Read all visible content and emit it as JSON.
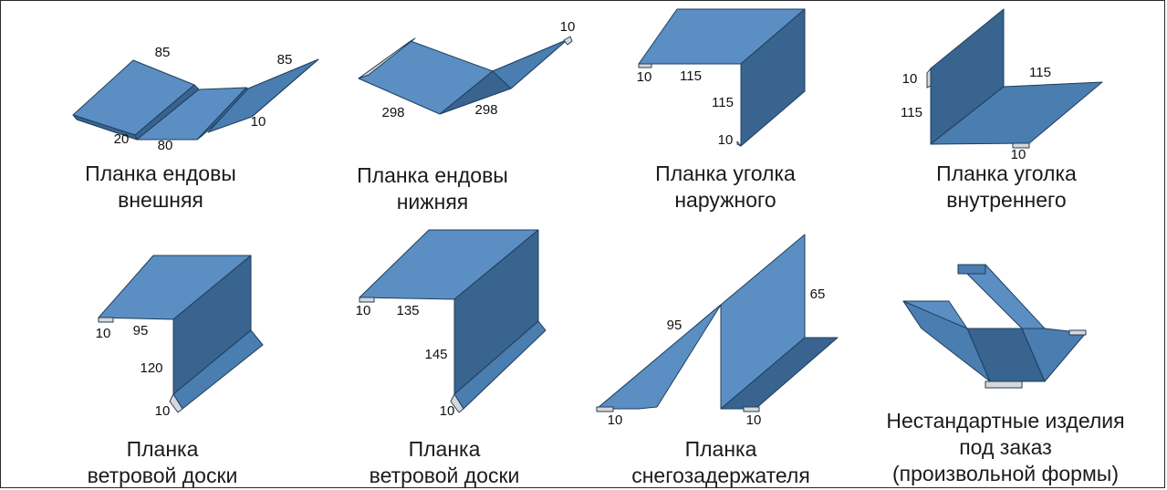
{
  "items": [
    {
      "caption": [
        "Планка ендовы",
        "внешняя"
      ],
      "dims": [
        "85",
        "85",
        "10",
        "20",
        "80"
      ]
    },
    {
      "caption": [
        "Планка ендовы",
        "нижняя"
      ],
      "dims": [
        "10",
        "298",
        "298"
      ]
    },
    {
      "caption": [
        "Планка уголка",
        "наружного"
      ],
      "dims": [
        "10",
        "115",
        "115",
        "10"
      ]
    },
    {
      "caption": [
        "Планка уголка",
        "внутреннего"
      ],
      "dims": [
        "10",
        "115",
        "115",
        "10"
      ]
    },
    {
      "caption": [
        "Планка",
        "ветровой доски"
      ],
      "dims": [
        "10",
        "95",
        "120",
        "10"
      ]
    },
    {
      "caption": [
        "Планка",
        "ветровой доски"
      ],
      "dims": [
        "10",
        "135",
        "145",
        "10"
      ]
    },
    {
      "caption": [
        "Планка",
        "снегозадержателя"
      ],
      "dims": [
        "95",
        "65",
        "10",
        "10"
      ]
    },
    {
      "caption": [
        "Нестандартные изделия",
        "под заказ",
        "(произвольной формы)"
      ],
      "dims": []
    }
  ],
  "colors": {
    "face_light": "#5b8fc3",
    "face_mid": "#4a7db0",
    "face_dark": "#38648f",
    "edge": "#1f3e5e",
    "hem": "#d8d8d8"
  }
}
